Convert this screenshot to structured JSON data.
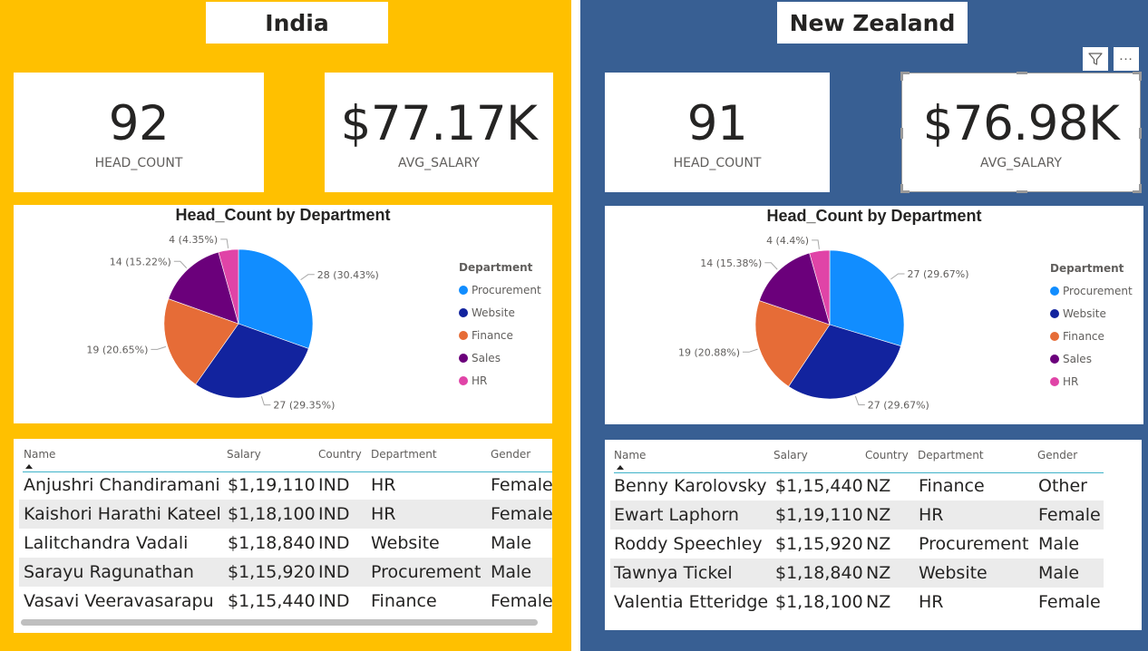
{
  "panels": {
    "india": {
      "title": "India",
      "head_count": {
        "value": "92",
        "label": "HEAD_COUNT"
      },
      "avg_salary": {
        "value": "$77.17K",
        "label": "AVG_SALARY"
      },
      "chart_title": "Head_Count by Department",
      "legend_title": "Department",
      "table": {
        "headers": [
          "Name",
          "Salary",
          "Country",
          "Department",
          "Gender"
        ],
        "rows": [
          [
            "Anjushri Chandiramani",
            "$1,19,110",
            "IND",
            "HR",
            "Female"
          ],
          [
            "Kaishori Harathi Kateel",
            "$1,18,100",
            "IND",
            "HR",
            "Female"
          ],
          [
            "Lalitchandra Vadali",
            "$1,18,840",
            "IND",
            "Website",
            "Male"
          ],
          [
            "Sarayu Ragunathan",
            "$1,15,920",
            "IND",
            "Procurement",
            "Male"
          ],
          [
            "Vasavi Veeravasarapu",
            "$1,15,440",
            "IND",
            "Finance",
            "Female"
          ]
        ]
      }
    },
    "nz": {
      "title": "New Zealand",
      "head_count": {
        "value": "91",
        "label": "HEAD_COUNT"
      },
      "avg_salary": {
        "value": "$76.98K",
        "label": "AVG_SALARY"
      },
      "chart_title": "Head_Count by Department",
      "legend_title": "Department",
      "filter_icon": "filter-icon",
      "more_icon": "more-options-icon",
      "table": {
        "headers": [
          "Name",
          "Salary",
          "Country",
          "Department",
          "Gender"
        ],
        "rows": [
          [
            "Benny Karolovsky",
            "$1,15,440",
            "NZ",
            "Finance",
            "Other"
          ],
          [
            "Ewart Laphorn",
            "$1,19,110",
            "NZ",
            "HR",
            "Female"
          ],
          [
            "Roddy Speechley",
            "$1,15,920",
            "NZ",
            "Procurement",
            "Male"
          ],
          [
            "Tawnya Tickel",
            "$1,18,840",
            "NZ",
            "Website",
            "Male"
          ],
          [
            "Valentia Etteridge",
            "$1,18,100",
            "NZ",
            "HR",
            "Female"
          ]
        ]
      }
    }
  },
  "colors": {
    "india_background": "#FFC000",
    "nz_background": "#385F93",
    "procurement": "#118DFF",
    "website": "#12239E",
    "finance": "#E66C37",
    "sales": "#6B007B",
    "hr": "#E044A7"
  },
  "chart_data": [
    {
      "type": "pie",
      "title": "Head_Count by Department",
      "legend_title": "Department",
      "legend_position": "right",
      "categories": [
        "Procurement",
        "Website",
        "Finance",
        "Sales",
        "HR"
      ],
      "values": [
        28,
        27,
        19,
        14,
        4
      ],
      "labels": [
        "28 (30.43%)",
        "27 (29.35%)",
        "19 (20.65%)",
        "14 (15.22%)",
        "4 (4.35%)"
      ],
      "colors": [
        "#118DFF",
        "#12239E",
        "#E66C37",
        "#6B007B",
        "#E044A7"
      ]
    },
    {
      "type": "pie",
      "title": "Head_Count by Department",
      "legend_title": "Department",
      "legend_position": "right",
      "categories": [
        "Procurement",
        "Website",
        "Finance",
        "Sales",
        "HR"
      ],
      "values": [
        27,
        27,
        19,
        14,
        4
      ],
      "labels": [
        "27 (29.67%)",
        "27 (29.67%)",
        "19 (20.88%)",
        "14 (15.38%)",
        "4 (4.4%)"
      ],
      "colors": [
        "#118DFF",
        "#12239E",
        "#E66C37",
        "#6B007B",
        "#E044A7"
      ]
    }
  ]
}
